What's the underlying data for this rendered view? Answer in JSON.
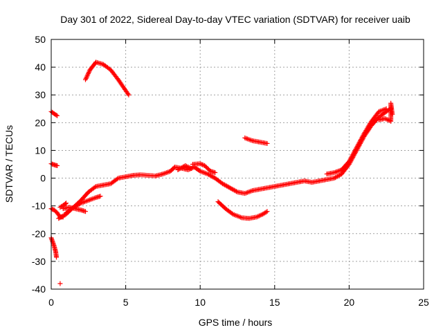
{
  "chart_data": {
    "type": "scatter",
    "title": "Day 301 of 2022, Sidereal Day-to-day VTEC variation (SDTVAR) for receiver uaib",
    "xlabel": "GPS time / hours",
    "ylabel": "SDTVAR / TECUs",
    "xlim": [
      0,
      25
    ],
    "ylim": [
      -40,
      50
    ],
    "xticks": [
      0,
      5,
      10,
      15,
      20,
      25
    ],
    "yticks": [
      -40,
      -30,
      -20,
      -10,
      0,
      10,
      20,
      30,
      40,
      50
    ],
    "grid": true,
    "marker_color": "#ff0000",
    "marker": "plus",
    "series": [
      {
        "name": "segment-1",
        "points": [
          [
            0,
            24
          ],
          [
            0.2,
            23.2
          ],
          [
            0.4,
            22.5
          ]
        ]
      },
      {
        "name": "segment-2",
        "points": [
          [
            0,
            5.2
          ],
          [
            0.2,
            4.8
          ],
          [
            0.4,
            4.5
          ]
        ]
      },
      {
        "name": "segment-3",
        "points": [
          [
            0,
            -11
          ],
          [
            0.2,
            -11.5
          ],
          [
            0.4,
            -12.5
          ],
          [
            0.6,
            -14
          ],
          [
            0.8,
            -14
          ]
        ]
      },
      {
        "name": "segment-4",
        "points": [
          [
            0,
            -21.5
          ],
          [
            0.1,
            -23
          ],
          [
            0.2,
            -24.5
          ],
          [
            0.3,
            -26.5
          ],
          [
            0.35,
            -28.5
          ]
        ]
      },
      {
        "name": "segment-5",
        "points": [
          [
            0.6,
            -38
          ]
        ]
      },
      {
        "name": "segment-6",
        "points": [
          [
            0.5,
            -14.5
          ],
          [
            1,
            -13
          ],
          [
            1.5,
            -10.5
          ],
          [
            2,
            -8
          ],
          [
            2.5,
            -5
          ],
          [
            3,
            -3
          ],
          [
            3.5,
            -2.5
          ],
          [
            4,
            -2
          ],
          [
            4.5,
            0
          ],
          [
            5,
            0.5
          ],
          [
            5.5,
            1
          ],
          [
            6,
            1.2
          ],
          [
            7,
            0.8
          ],
          [
            7.5,
            1.5
          ],
          [
            8,
            2.5
          ],
          [
            8.3,
            4
          ],
          [
            8.8,
            3.5
          ],
          [
            9.2,
            3
          ],
          [
            9.6,
            4
          ],
          [
            10,
            2.5
          ],
          [
            10.5,
            1.5
          ],
          [
            11,
            0
          ],
          [
            11.5,
            -2
          ],
          [
            12,
            -3.5
          ],
          [
            12.5,
            -5
          ],
          [
            13,
            -5.5
          ],
          [
            13.5,
            -4.5
          ],
          [
            14,
            -4
          ],
          [
            14.5,
            -3.5
          ],
          [
            15,
            -3
          ],
          [
            15.5,
            -2.5
          ],
          [
            16,
            -2
          ],
          [
            16.5,
            -1.5
          ],
          [
            17,
            -1
          ],
          [
            17.5,
            -1.5
          ],
          [
            18,
            -1
          ],
          [
            18.5,
            -0.5
          ],
          [
            19,
            0
          ],
          [
            19.5,
            1.5
          ],
          [
            20,
            5
          ],
          [
            20.5,
            10
          ],
          [
            21,
            15
          ],
          [
            21.5,
            19
          ],
          [
            22,
            22
          ],
          [
            22.5,
            24
          ],
          [
            22.8,
            25
          ]
        ]
      },
      {
        "name": "segment-7",
        "points": [
          [
            1,
            -12.5
          ],
          [
            1.5,
            -10.5
          ],
          [
            2,
            -9
          ],
          [
            2.5,
            -8
          ],
          [
            3,
            -7
          ],
          [
            3.3,
            -6.5
          ]
        ]
      },
      {
        "name": "segment-8",
        "points": [
          [
            0.8,
            -11
          ],
          [
            1.2,
            -10.5
          ],
          [
            1.6,
            -11
          ],
          [
            2,
            -11.5
          ],
          [
            2.3,
            -12
          ]
        ]
      },
      {
        "name": "segment-9",
        "points": [
          [
            0.6,
            -10.5
          ],
          [
            0.9,
            -9.5
          ],
          [
            1,
            -9
          ]
        ]
      },
      {
        "name": "segment-10",
        "points": [
          [
            2.3,
            35.5
          ],
          [
            2.6,
            39
          ],
          [
            3,
            41.8
          ],
          [
            3.5,
            41
          ],
          [
            4,
            39
          ],
          [
            4.5,
            35.5
          ],
          [
            5.2,
            30
          ]
        ]
      },
      {
        "name": "segment-11",
        "points": [
          [
            13,
            14.5
          ],
          [
            13.5,
            13.5
          ],
          [
            14,
            13
          ],
          [
            14.5,
            12.5
          ]
        ]
      },
      {
        "name": "segment-12",
        "points": [
          [
            11.2,
            -8.5
          ],
          [
            11.7,
            -11
          ],
          [
            12.2,
            -13
          ],
          [
            12.8,
            -14.3
          ],
          [
            13.3,
            -14.5
          ],
          [
            13.8,
            -14
          ],
          [
            14.2,
            -13
          ],
          [
            14.5,
            -12
          ]
        ]
      },
      {
        "name": "segment-13",
        "points": [
          [
            22,
            21
          ],
          [
            22.4,
            21.5
          ],
          [
            22.8,
            20.5
          ],
          [
            22.8,
            27
          ],
          [
            22.9,
            23
          ]
        ]
      },
      {
        "name": "segment-14",
        "points": [
          [
            9.5,
            5
          ],
          [
            10,
            5.2
          ],
          [
            10.3,
            4.5
          ],
          [
            10.7,
            2.5
          ],
          [
            11,
            2
          ]
        ]
      },
      {
        "name": "segment-15",
        "points": [
          [
            8.5,
            3
          ],
          [
            9,
            4.5
          ],
          [
            9.4,
            3.5
          ]
        ]
      },
      {
        "name": "segment-16",
        "points": [
          [
            18.5,
            1.5
          ],
          [
            19,
            2
          ],
          [
            19.5,
            3
          ],
          [
            20,
            6
          ],
          [
            20.5,
            11
          ],
          [
            21,
            16
          ],
          [
            21.5,
            20.5
          ],
          [
            22,
            24
          ],
          [
            22.5,
            25
          ]
        ]
      }
    ]
  }
}
